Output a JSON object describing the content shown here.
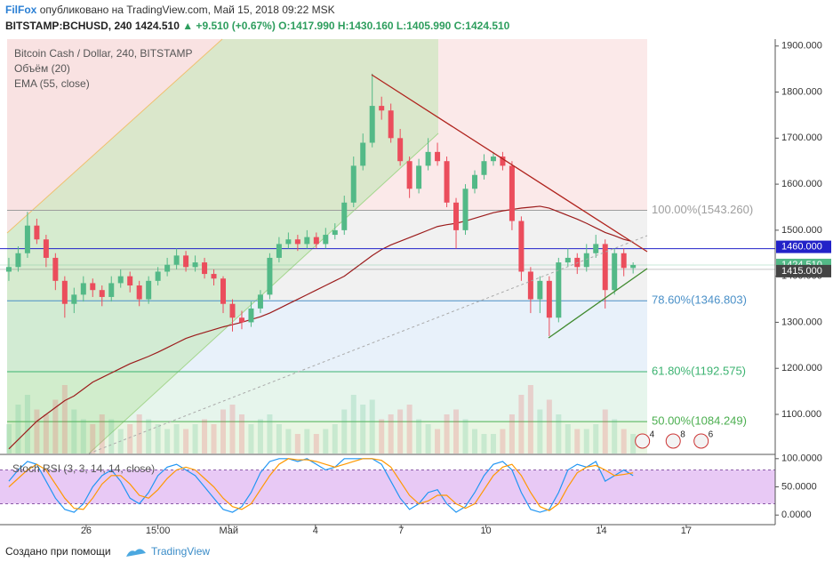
{
  "header": {
    "author": "FilFox",
    "published": "опубликовано на TradingView.com, Май 15, 2018 09:22 MSK",
    "symbol": "BITSTAMP:BCHUSD, 240",
    "last": "1424.510",
    "change": "▲ +9.510 (+0.67%)",
    "ohlc": "O:1417.990 H:1430.160 L:1405.990 C:1424.510"
  },
  "footer": {
    "created": "Создано при помощи",
    "brand": "TradingView"
  },
  "chart_data": [
    {
      "type": "candlestick",
      "title": "Bitcoin Cash / Dollar, 240, BITSTAMP",
      "xlim": [
        -0.95,
        82.25
      ],
      "xticks": [
        {
          "value": 8.3,
          "label": "26"
        },
        {
          "value": 16,
          "label": "15:00"
        },
        {
          "value": 23.6,
          "label": "Май"
        },
        {
          "value": 32.9,
          "label": "4"
        },
        {
          "value": 42.1,
          "label": "7"
        },
        {
          "value": 51.2,
          "label": "10"
        },
        {
          "value": 63.6,
          "label": "14"
        },
        {
          "value": 72.7,
          "label": "17"
        }
      ],
      "ylim": [
        1015,
        1915
      ],
      "yticks": [
        {
          "value": 1100,
          "label": "1100.000"
        },
        {
          "value": 1200,
          "label": "1200.000"
        },
        {
          "value": 1300,
          "label": "1300.000"
        },
        {
          "value": 1400,
          "label": "1400.000"
        },
        {
          "value": 1500,
          "label": "1500.000"
        },
        {
          "value": 1600,
          "label": "1600.000"
        },
        {
          "value": 1700,
          "label": "1700.000"
        },
        {
          "value": 1800,
          "label": "1800.000"
        },
        {
          "value": 1900,
          "label": "1900.000"
        }
      ],
      "up_color": "#53b987",
      "down_color": "#eb4d5c",
      "candles": [
        [
          1410,
          1440,
          1390,
          1420
        ],
        [
          1420,
          1465,
          1410,
          1450
        ],
        [
          1450,
          1540,
          1440,
          1510
        ],
        [
          1510,
          1525,
          1470,
          1480
        ],
        [
          1480,
          1490,
          1420,
          1440
        ],
        [
          1440,
          1450,
          1370,
          1390
        ],
        [
          1390,
          1400,
          1310,
          1340
        ],
        [
          1340,
          1375,
          1320,
          1360
        ],
        [
          1360,
          1400,
          1345,
          1385
        ],
        [
          1385,
          1395,
          1355,
          1370
        ],
        [
          1370,
          1380,
          1335,
          1355
        ],
        [
          1355,
          1400,
          1345,
          1385
        ],
        [
          1385,
          1415,
          1375,
          1400
        ],
        [
          1400,
          1410,
          1365,
          1380
        ],
        [
          1380,
          1390,
          1335,
          1350
        ],
        [
          1350,
          1400,
          1340,
          1390
        ],
        [
          1390,
          1420,
          1380,
          1410
        ],
        [
          1410,
          1440,
          1400,
          1425
        ],
        [
          1425,
          1460,
          1415,
          1445
        ],
        [
          1445,
          1455,
          1410,
          1420
        ],
        [
          1420,
          1445,
          1410,
          1430
        ],
        [
          1430,
          1440,
          1395,
          1405
        ],
        [
          1405,
          1415,
          1380,
          1395
        ],
        [
          1395,
          1400,
          1320,
          1340
        ],
        [
          1340,
          1350,
          1280,
          1310
        ],
        [
          1310,
          1325,
          1285,
          1300
        ],
        [
          1300,
          1345,
          1290,
          1330
        ],
        [
          1330,
          1370,
          1320,
          1360
        ],
        [
          1360,
          1450,
          1350,
          1440
        ],
        [
          1440,
          1485,
          1430,
          1470
        ],
        [
          1470,
          1495,
          1460,
          1480
        ],
        [
          1480,
          1490,
          1455,
          1470
        ],
        [
          1470,
          1500,
          1460,
          1485
        ],
        [
          1485,
          1495,
          1460,
          1470
        ],
        [
          1470,
          1505,
          1460,
          1490
        ],
        [
          1490,
          1515,
          1480,
          1500
        ],
        [
          1500,
          1575,
          1490,
          1560
        ],
        [
          1560,
          1660,
          1550,
          1640
        ],
        [
          1640,
          1710,
          1630,
          1690
        ],
        [
          1690,
          1840,
          1680,
          1770
        ],
        [
          1770,
          1790,
          1740,
          1760
        ],
        [
          1760,
          1775,
          1690,
          1700
        ],
        [
          1700,
          1720,
          1640,
          1650
        ],
        [
          1650,
          1660,
          1570,
          1590
        ],
        [
          1590,
          1655,
          1580,
          1640
        ],
        [
          1640,
          1700,
          1630,
          1670
        ],
        [
          1670,
          1690,
          1640,
          1650
        ],
        [
          1650,
          1660,
          1550,
          1560
        ],
        [
          1560,
          1570,
          1460,
          1500
        ],
        [
          1500,
          1600,
          1490,
          1590
        ],
        [
          1590,
          1630,
          1580,
          1620
        ],
        [
          1620,
          1665,
          1610,
          1650
        ],
        [
          1650,
          1670,
          1640,
          1660
        ],
        [
          1660,
          1670,
          1630,
          1640
        ],
        [
          1640,
          1650,
          1500,
          1520
        ],
        [
          1520,
          1530,
          1390,
          1410
        ],
        [
          1410,
          1420,
          1320,
          1350
        ],
        [
          1350,
          1400,
          1320,
          1390
        ],
        [
          1390,
          1400,
          1270,
          1310
        ],
        [
          1310,
          1440,
          1300,
          1430
        ],
        [
          1430,
          1460,
          1420,
          1440
        ],
        [
          1440,
          1450,
          1405,
          1420
        ],
        [
          1420,
          1470,
          1410,
          1450
        ],
        [
          1450,
          1490,
          1440,
          1470
        ],
        [
          1470,
          1480,
          1330,
          1370
        ],
        [
          1370,
          1460,
          1360,
          1450
        ],
        [
          1450,
          1460,
          1400,
          1417.99
        ],
        [
          1417.99,
          1430.16,
          1405.99,
          1424.51
        ]
      ],
      "volume": {
        "name": "Объём (20)",
        "values": [
          30,
          50,
          60,
          45,
          40,
          55,
          70,
          45,
          35,
          30,
          40,
          35,
          25,
          30,
          40,
          35,
          30,
          25,
          30,
          25,
          30,
          35,
          30,
          45,
          50,
          40,
          30,
          35,
          40,
          30,
          25,
          20,
          25,
          20,
          25,
          30,
          45,
          60,
          50,
          55,
          35,
          40,
          45,
          50,
          35,
          30,
          25,
          40,
          45,
          35,
          25,
          20,
          20,
          25,
          40,
          60,
          70,
          45,
          55,
          40,
          30,
          25,
          25,
          30,
          45,
          35,
          25,
          20
        ]
      },
      "ema": {
        "name": "EMA (55, close)",
        "color": "#9c1c1c",
        "values": [
          1025,
          1045,
          1065,
          1085,
          1100,
          1115,
          1130,
          1140,
          1155,
          1170,
          1180,
          1190,
          1200,
          1210,
          1218,
          1226,
          1235,
          1245,
          1255,
          1265,
          1272,
          1278,
          1284,
          1290,
          1295,
          1300,
          1306,
          1312,
          1320,
          1330,
          1340,
          1350,
          1360,
          1370,
          1380,
          1390,
          1400,
          1415,
          1430,
          1445,
          1458,
          1468,
          1476,
          1484,
          1492,
          1500,
          1508,
          1512,
          1515,
          1520,
          1526,
          1532,
          1538,
          1542,
          1545,
          1548,
          1550,
          1552,
          1548,
          1540,
          1532,
          1524,
          1515,
          1505,
          1495,
          1488,
          1480,
          1475
        ]
      },
      "fib_levels": [
        {
          "value": 1543.26,
          "label": "100.00%(1543.260)",
          "color": "#9e9e9e",
          "fill": "#f1f1f1"
        },
        {
          "value": 1346.803,
          "label": "78.60%(1346.803)",
          "color": "#4a90c8",
          "fill": "#e8f1fa"
        },
        {
          "value": 1192.575,
          "label": "61.80%(1192.575)",
          "color": "#3cb371",
          "fill": "#e6f5ec"
        },
        {
          "value": 1084.249,
          "label": "50.00%(1084.249)",
          "color": "#4caf50",
          "fill": "#e9f6e3"
        }
      ],
      "hlines": [
        {
          "value": 1460,
          "label": "1460.000",
          "color": "#2222c8"
        },
        {
          "value": 1424.51,
          "label": "1424.510",
          "color": "#53b987"
        },
        {
          "value": 1415,
          "label": "1415.000",
          "color": "#444444"
        }
      ],
      "events": [
        {
          "x": 68,
          "count": 4
        },
        {
          "x": 71.3,
          "count": 8
        },
        {
          "x": 74.3,
          "count": 6
        }
      ]
    },
    {
      "type": "line",
      "title": "Stoch RSI (3, 3, 14, 14, close)",
      "ylim": [
        -17,
        106
      ],
      "yticks": [
        {
          "value": 0,
          "label": "0.0000"
        },
        {
          "value": 50,
          "label": "50.0000"
        },
        {
          "value": 100,
          "label": "100.0000"
        }
      ],
      "band": [
        20,
        80
      ],
      "series": [
        {
          "color": "#2196f3",
          "values": [
            60,
            80,
            95,
            90,
            60,
            30,
            10,
            5,
            20,
            50,
            70,
            80,
            60,
            30,
            20,
            40,
            70,
            85,
            90,
            80,
            70,
            50,
            30,
            10,
            5,
            15,
            40,
            75,
            95,
            100,
            100,
            95,
            100,
            90,
            80,
            85,
            100,
            100,
            100,
            100,
            90,
            60,
            30,
            10,
            20,
            40,
            45,
            20,
            5,
            15,
            40,
            70,
            90,
            95,
            80,
            40,
            10,
            5,
            10,
            40,
            80,
            90,
            85,
            95,
            60,
            70,
            80,
            70
          ]
        },
        {
          "color": "#ff9800",
          "values": [
            50,
            65,
            80,
            90,
            80,
            55,
            30,
            12,
            10,
            30,
            55,
            70,
            70,
            55,
            35,
            30,
            45,
            65,
            80,
            85,
            80,
            65,
            50,
            30,
            15,
            10,
            20,
            45,
            70,
            90,
            100,
            98,
            98,
            95,
            90,
            85,
            90,
            95,
            100,
            100,
            97,
            85,
            60,
            35,
            20,
            25,
            35,
            35,
            20,
            12,
            20,
            45,
            70,
            85,
            90,
            70,
            40,
            15,
            8,
            20,
            50,
            75,
            85,
            88,
            80,
            70,
            72,
            75
          ]
        }
      ]
    }
  ]
}
